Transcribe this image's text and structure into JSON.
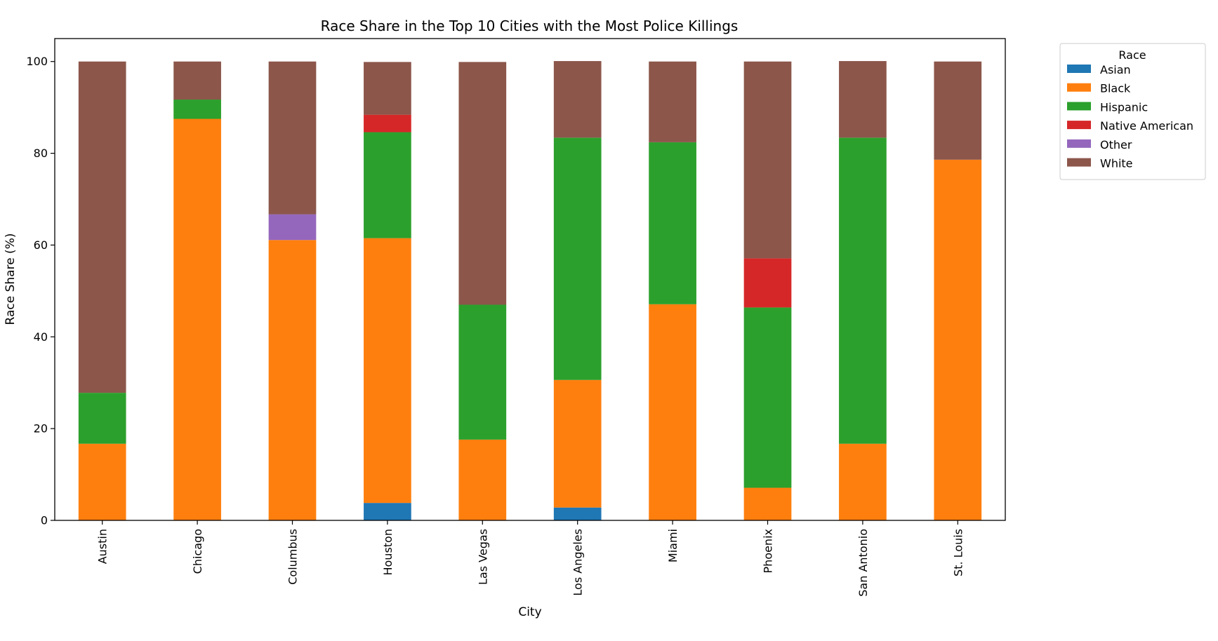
{
  "chart_data": {
    "type": "bar",
    "stacked": true,
    "title": "Race Share in the Top 10 Cities with the Most Police Killings",
    "xlabel": "City",
    "ylabel": "Race Share (%)",
    "ylim": [
      0,
      105
    ],
    "yticks": [
      0,
      20,
      40,
      60,
      80,
      100
    ],
    "grid": false,
    "legend": {
      "title": "Race",
      "placement": "outside-top-right"
    },
    "categories": [
      "Austin",
      "Chicago",
      "Columbus",
      "Houston",
      "Las Vegas",
      "Los Angeles",
      "Miami",
      "Phoenix",
      "San Antonio",
      "St. Louis"
    ],
    "series": [
      {
        "name": "Asian",
        "color": "#1f77b4",
        "values": [
          0,
          0,
          0,
          3.8,
          0,
          2.8,
          0,
          0,
          0,
          0
        ]
      },
      {
        "name": "Black",
        "color": "#ff7f0e",
        "values": [
          16.7,
          87.5,
          61.1,
          57.7,
          17.6,
          27.8,
          47.1,
          7.1,
          16.7,
          78.6
        ]
      },
      {
        "name": "Hispanic",
        "color": "#2ca02c",
        "values": [
          11.1,
          4.2,
          0,
          23.1,
          29.4,
          52.8,
          35.3,
          39.3,
          66.7,
          0
        ]
      },
      {
        "name": "Native American",
        "color": "#d62728",
        "values": [
          0,
          0,
          0,
          3.8,
          0,
          0,
          0,
          10.7,
          0,
          0
        ]
      },
      {
        "name": "Other",
        "color": "#9467bd",
        "values": [
          0,
          0,
          5.6,
          0,
          0,
          0,
          0,
          0,
          0,
          0
        ]
      },
      {
        "name": "White",
        "color": "#8c564b",
        "values": [
          72.2,
          8.3,
          33.3,
          11.5,
          52.9,
          16.7,
          17.6,
          42.9,
          16.7,
          21.4
        ]
      }
    ]
  }
}
